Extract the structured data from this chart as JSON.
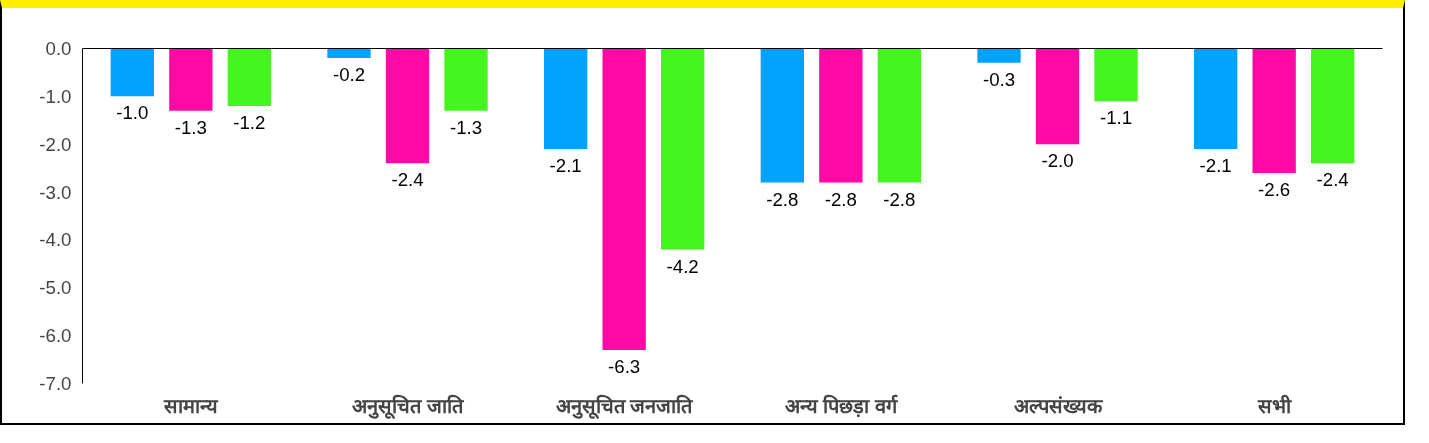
{
  "chart_data": {
    "type": "bar",
    "categories": [
      "सामान्य",
      "अनुसूचित जाति",
      "अनुसूचित जनजाति",
      "अन्य पिछड़ा वर्ग",
      "अल्पसंख्यक",
      "सभी"
    ],
    "series": [
      {
        "color": "#00a2ff",
        "values": [
          -1.0,
          -0.2,
          -2.1,
          -2.8,
          -0.3,
          -2.1
        ],
        "value_labels": [
          "-1.0",
          "-0.2",
          "-2.1",
          "-2.8",
          "-0.3",
          "-2.1"
        ]
      },
      {
        "color": "#ff0aa5",
        "values": [
          -1.3,
          -2.4,
          -6.3,
          -2.8,
          -2.0,
          -2.6
        ],
        "value_labels": [
          "-1.3",
          "-2.4",
          "-6.3",
          "-2.8",
          "-2.0",
          "-2.6"
        ]
      },
      {
        "color": "#44f520",
        "values": [
          -1.2,
          -1.3,
          -4.2,
          -2.8,
          -1.1,
          -2.4
        ],
        "value_labels": [
          "-1.2",
          "-1.3",
          "-4.2",
          "-2.8",
          "-1.1",
          "-2.4"
        ]
      }
    ],
    "ylim": [
      -7.0,
      0.0
    ],
    "yticks": [
      {
        "value": 0,
        "label": "0.0"
      },
      {
        "value": -1,
        "label": "-1.0"
      },
      {
        "value": -2,
        "label": "-2.0"
      },
      {
        "value": -3,
        "label": "-3.0"
      },
      {
        "value": -4,
        "label": "-4.0"
      },
      {
        "value": -5,
        "label": "-5.0"
      },
      {
        "value": -6,
        "label": "-6.0"
      },
      {
        "value": -7,
        "label": "-7.0"
      }
    ],
    "grid": false
  }
}
